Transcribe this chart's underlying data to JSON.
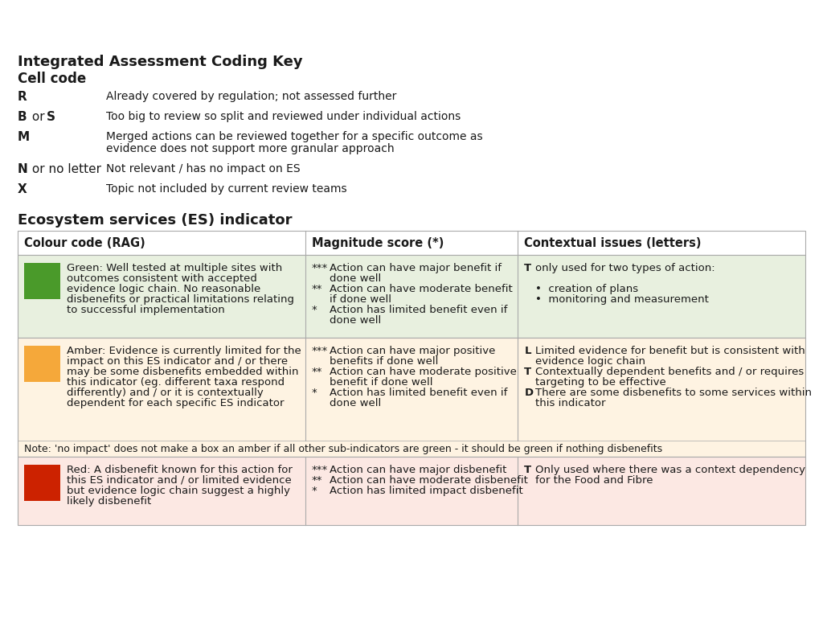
{
  "title": "Integrated Assessment Coding Key",
  "cell_code_label": "Cell code",
  "cell_codes": [
    {
      "code": "R",
      "description": "Already covered by regulation; not assessed further",
      "two_line": false
    },
    {
      "code": "B or S",
      "description": "Too big to review so split and reviewed under individual actions",
      "two_line": false
    },
    {
      "code": "M",
      "description": "Merged actions can be reviewed together for a specific outcome as\nevidence does not support more granular approach",
      "two_line": true
    },
    {
      "code": "N or no letter",
      "description": "Not relevant / has no impact on ES",
      "two_line": false
    },
    {
      "code": "X",
      "description": "Topic not included by current review teams",
      "two_line": false
    }
  ],
  "es_title": "Ecosystem services (ES) indicator",
  "table_headers": [
    "Colour code (RAG)",
    "Magnitude score (*)",
    "Contextual issues (letters)"
  ],
  "col_splits": [
    0.365,
    0.635
  ],
  "rows": [
    {
      "bg_color": "#e8f0df",
      "swatch_color": "#4a9a2a",
      "col1_lines": [
        "Green: Well tested at multiple sites with",
        "outcomes consistent with accepted",
        "evidence logic chain. No reasonable",
        "disbenefits or practical limitations relating",
        "to successful implementation"
      ],
      "col2_lines": [
        [
          "***",
          "Action can have major benefit if"
        ],
        [
          "",
          "done well"
        ],
        [
          "**",
          "Action can have moderate benefit"
        ],
        [
          "",
          "if done well"
        ],
        [
          "*",
          "Action has limited benefit even if"
        ],
        [
          "",
          "done well"
        ]
      ],
      "col3_lines": [
        [
          "T",
          "only used for two types of action:"
        ],
        [
          "",
          ""
        ],
        [
          "",
          "•  creation of plans"
        ],
        [
          "",
          "•  monitoring and measurement"
        ]
      ]
    },
    {
      "bg_color": "#fef3e2",
      "swatch_color": "#f5a83a",
      "col1_lines": [
        "Amber: Evidence is currently limited for the",
        "impact on this ES indicator and / or there",
        "may be some disbenefits embedded within",
        "this indicator (eg. different taxa respond",
        "differently) and / or it is contextually",
        "dependent for each specific ES indicator"
      ],
      "col2_lines": [
        [
          "***",
          "Action can have major positive"
        ],
        [
          "",
          "benefits if done well"
        ],
        [
          "**",
          "Action can have moderate positive"
        ],
        [
          "",
          "benefit if done well"
        ],
        [
          "*",
          "Action has limited benefit even if"
        ],
        [
          "",
          "done well"
        ]
      ],
      "col3_lines": [
        [
          "L",
          "Limited evidence for benefit but is consistent with"
        ],
        [
          "",
          "evidence logic chain"
        ],
        [
          "T",
          "Contextually dependent benefits and / or requires"
        ],
        [
          "",
          "targeting to be effective"
        ],
        [
          "D",
          "There are some disbenefits to some services within"
        ],
        [
          "",
          "this indicator"
        ]
      ],
      "note": "Note: 'no impact' does not make a box an amber if all other sub-indicators are green - it should be green if nothing disbenefits"
    },
    {
      "bg_color": "#fce8e3",
      "swatch_color": "#cc2200",
      "col1_lines": [
        "Red: A disbenefit known for this action for",
        "this ES indicator and / or limited evidence",
        "but evidence logic chain suggest a highly",
        "likely disbenefit"
      ],
      "col2_lines": [
        [
          "***",
          "Action can have major disbenefit"
        ],
        [
          "**",
          "Action can have moderate disbenefit"
        ],
        [
          "*",
          "Action has limited impact disbenefit"
        ]
      ],
      "col3_lines": [
        [
          "T",
          "Only used where there was a context dependency"
        ],
        [
          "",
          "for the Food and Fibre"
        ]
      ]
    }
  ],
  "bg_color": "#ffffff",
  "text_color": "#1a1a1a",
  "table_border_color": "#aaaaaa",
  "title_fontsize": 13,
  "subtitle_fontsize": 12,
  "body_fontsize": 9.5,
  "header_fontsize": 10.5,
  "code_fontsize": 11,
  "desc_fontsize": 10
}
